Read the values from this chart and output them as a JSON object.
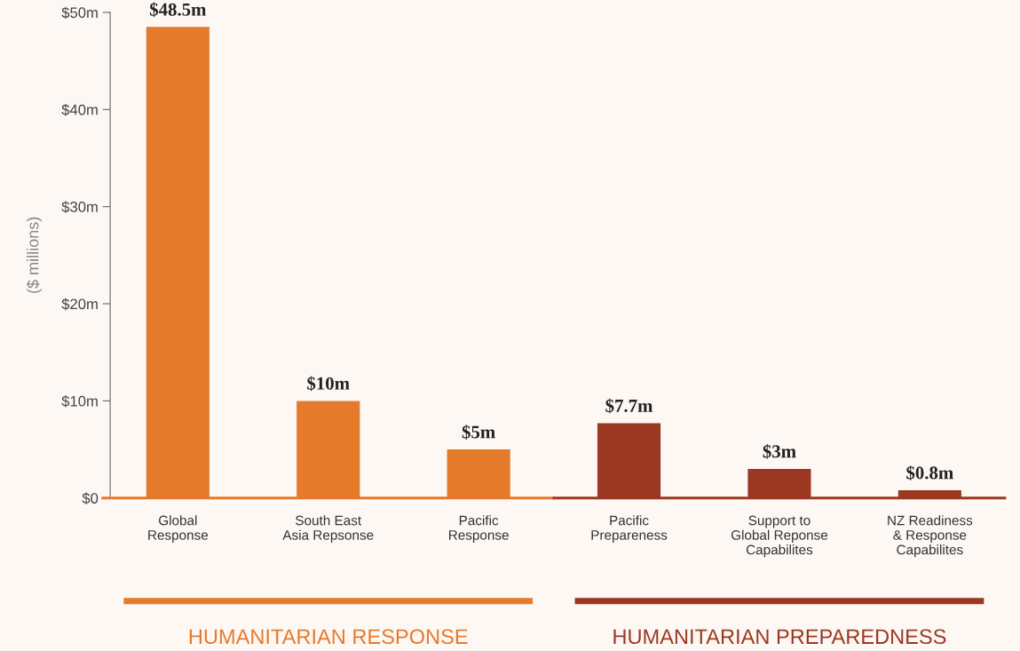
{
  "chart_data": {
    "type": "bar",
    "categories": [
      "Global\nResponse",
      "South East\nAsia Repsonse",
      "Pacific\nResponse",
      "Pacific\nPrepareness",
      "Support to\nGlobal Reponse\nCapabilites",
      "NZ Readiness\n& Response\nCapabilites"
    ],
    "ylabel": "($ millions)",
    "series": [
      {
        "name": "HUMANITARIAN RESPONSE",
        "color": "#e67a2b",
        "values": [
          48.5,
          10,
          5,
          null,
          null,
          null
        ],
        "value_labels": [
          "$48.5m",
          "$10m",
          "$5m",
          null,
          null,
          null
        ]
      },
      {
        "name": "HUMANITARIAN PREPAREDNESS",
        "color": "#9b3822",
        "values": [
          null,
          null,
          null,
          7.7,
          3,
          0.8
        ],
        "value_labels": [
          null,
          null,
          null,
          "$7.7m",
          "$3m",
          "$0.8m"
        ]
      }
    ],
    "ylim": [
      0,
      50
    ],
    "yticks": [
      {
        "value": 0,
        "label": "$0"
      },
      {
        "value": 10,
        "label": "$10m"
      },
      {
        "value": 20,
        "label": "$20m"
      },
      {
        "value": 30,
        "label": "$30m"
      },
      {
        "value": 40,
        "label": "$40m"
      },
      {
        "value": 50,
        "label": "$50m"
      }
    ],
    "grid": false,
    "legend": false
  }
}
